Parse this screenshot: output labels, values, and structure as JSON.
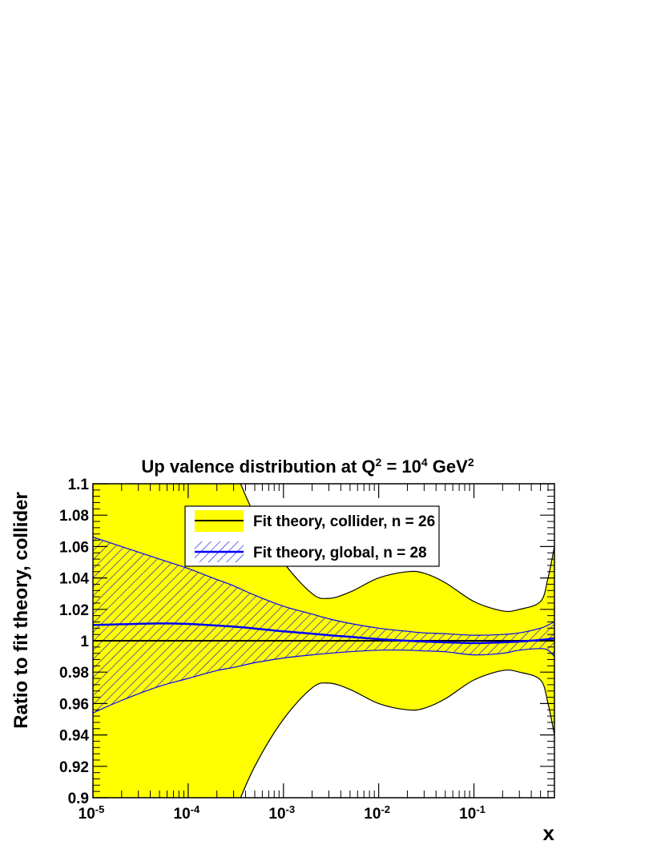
{
  "chart_data": {
    "type": "area",
    "title": {
      "prefix": "Up valence distribution at Q",
      "q_exp": "2",
      "middle": " = 10",
      "scale_exp": "4",
      "unit": " GeV",
      "unit_exp": "2"
    },
    "xlabel": "x",
    "ylabel": "Ratio to fit theory, collider",
    "x_scale": "log",
    "xlim": [
      1e-05,
      0.7
    ],
    "ylim": [
      0.9,
      1.1
    ],
    "x_ticks": [
      {
        "value": 1e-05,
        "base": "10",
        "exp": "-5"
      },
      {
        "value": 0.0001,
        "base": "10",
        "exp": "-4"
      },
      {
        "value": 0.001,
        "base": "10",
        "exp": "-3"
      },
      {
        "value": 0.01,
        "base": "10",
        "exp": "-2"
      },
      {
        "value": 0.1,
        "base": "10",
        "exp": "-1"
      }
    ],
    "y_ticks": [
      {
        "value": 0.9,
        "label": "0.9"
      },
      {
        "value": 0.92,
        "label": "0.92"
      },
      {
        "value": 0.94,
        "label": "0.94"
      },
      {
        "value": 0.96,
        "label": "0.96"
      },
      {
        "value": 0.98,
        "label": "0.98"
      },
      {
        "value": 1.0,
        "label": "1"
      },
      {
        "value": 1.02,
        "label": "1.02"
      },
      {
        "value": 1.04,
        "label": "1.04"
      },
      {
        "value": 1.06,
        "label": "1.06"
      },
      {
        "value": 1.08,
        "label": "1.08"
      },
      {
        "value": 1.1,
        "label": "1.1"
      }
    ],
    "grid": false,
    "legend_position": "top-center",
    "x": [
      1e-05,
      2e-05,
      5e-05,
      0.0001,
      0.0002,
      0.0003,
      0.0005,
      0.001,
      0.002,
      0.003,
      0.005,
      0.01,
      0.02,
      0.03,
      0.05,
      0.1,
      0.2,
      0.3,
      0.5,
      0.6,
      0.7
    ],
    "series": [
      {
        "name": "Fit theory, collider, n = 26",
        "color": "#000000",
        "band_color": "#ffff00",
        "central": [
          1.0,
          1.0,
          1.0,
          1.0,
          1.0,
          1.0,
          1.0,
          1.0,
          1.0,
          1.0,
          1.0,
          1.0,
          1.0,
          1.0,
          1.0,
          1.0,
          1.0,
          1.0,
          1.0,
          1.0,
          1.0
        ],
        "upper": [
          1.15,
          1.15,
          1.15,
          1.15,
          1.13,
          1.11,
          1.08,
          1.05,
          1.03,
          1.027,
          1.031,
          1.04,
          1.044,
          1.043,
          1.037,
          1.025,
          1.019,
          1.02,
          1.025,
          1.04,
          1.06
        ],
        "lower": [
          0.85,
          0.85,
          0.85,
          0.85,
          0.87,
          0.89,
          0.92,
          0.95,
          0.97,
          0.973,
          0.969,
          0.96,
          0.956,
          0.957,
          0.963,
          0.975,
          0.981,
          0.98,
          0.975,
          0.96,
          0.94
        ]
      },
      {
        "name": "Fit theory, global, n = 28",
        "color": "#0000ff",
        "band_color": "#0000ff",
        "central": [
          1.01,
          1.0105,
          1.011,
          1.0107,
          1.0097,
          1.009,
          1.0078,
          1.006,
          1.0045,
          1.0035,
          1.0025,
          1.001,
          1.0,
          0.9995,
          0.999,
          0.9985,
          0.999,
          0.9995,
          1.0005,
          1.001,
          1.0015
        ],
        "upper": [
          1.066,
          1.06,
          1.052,
          1.046,
          1.039,
          1.035,
          1.029,
          1.022,
          1.017,
          1.014,
          1.011,
          1.008,
          1.006,
          1.005,
          1.0045,
          1.0035,
          1.004,
          1.005,
          1.008,
          1.01,
          1.012
        ],
        "lower": [
          0.954,
          0.962,
          0.971,
          0.976,
          0.981,
          0.983,
          0.986,
          0.989,
          0.991,
          0.992,
          0.993,
          0.994,
          0.994,
          0.9935,
          0.993,
          0.991,
          0.992,
          0.994,
          0.995,
          0.994,
          0.99
        ]
      }
    ]
  }
}
